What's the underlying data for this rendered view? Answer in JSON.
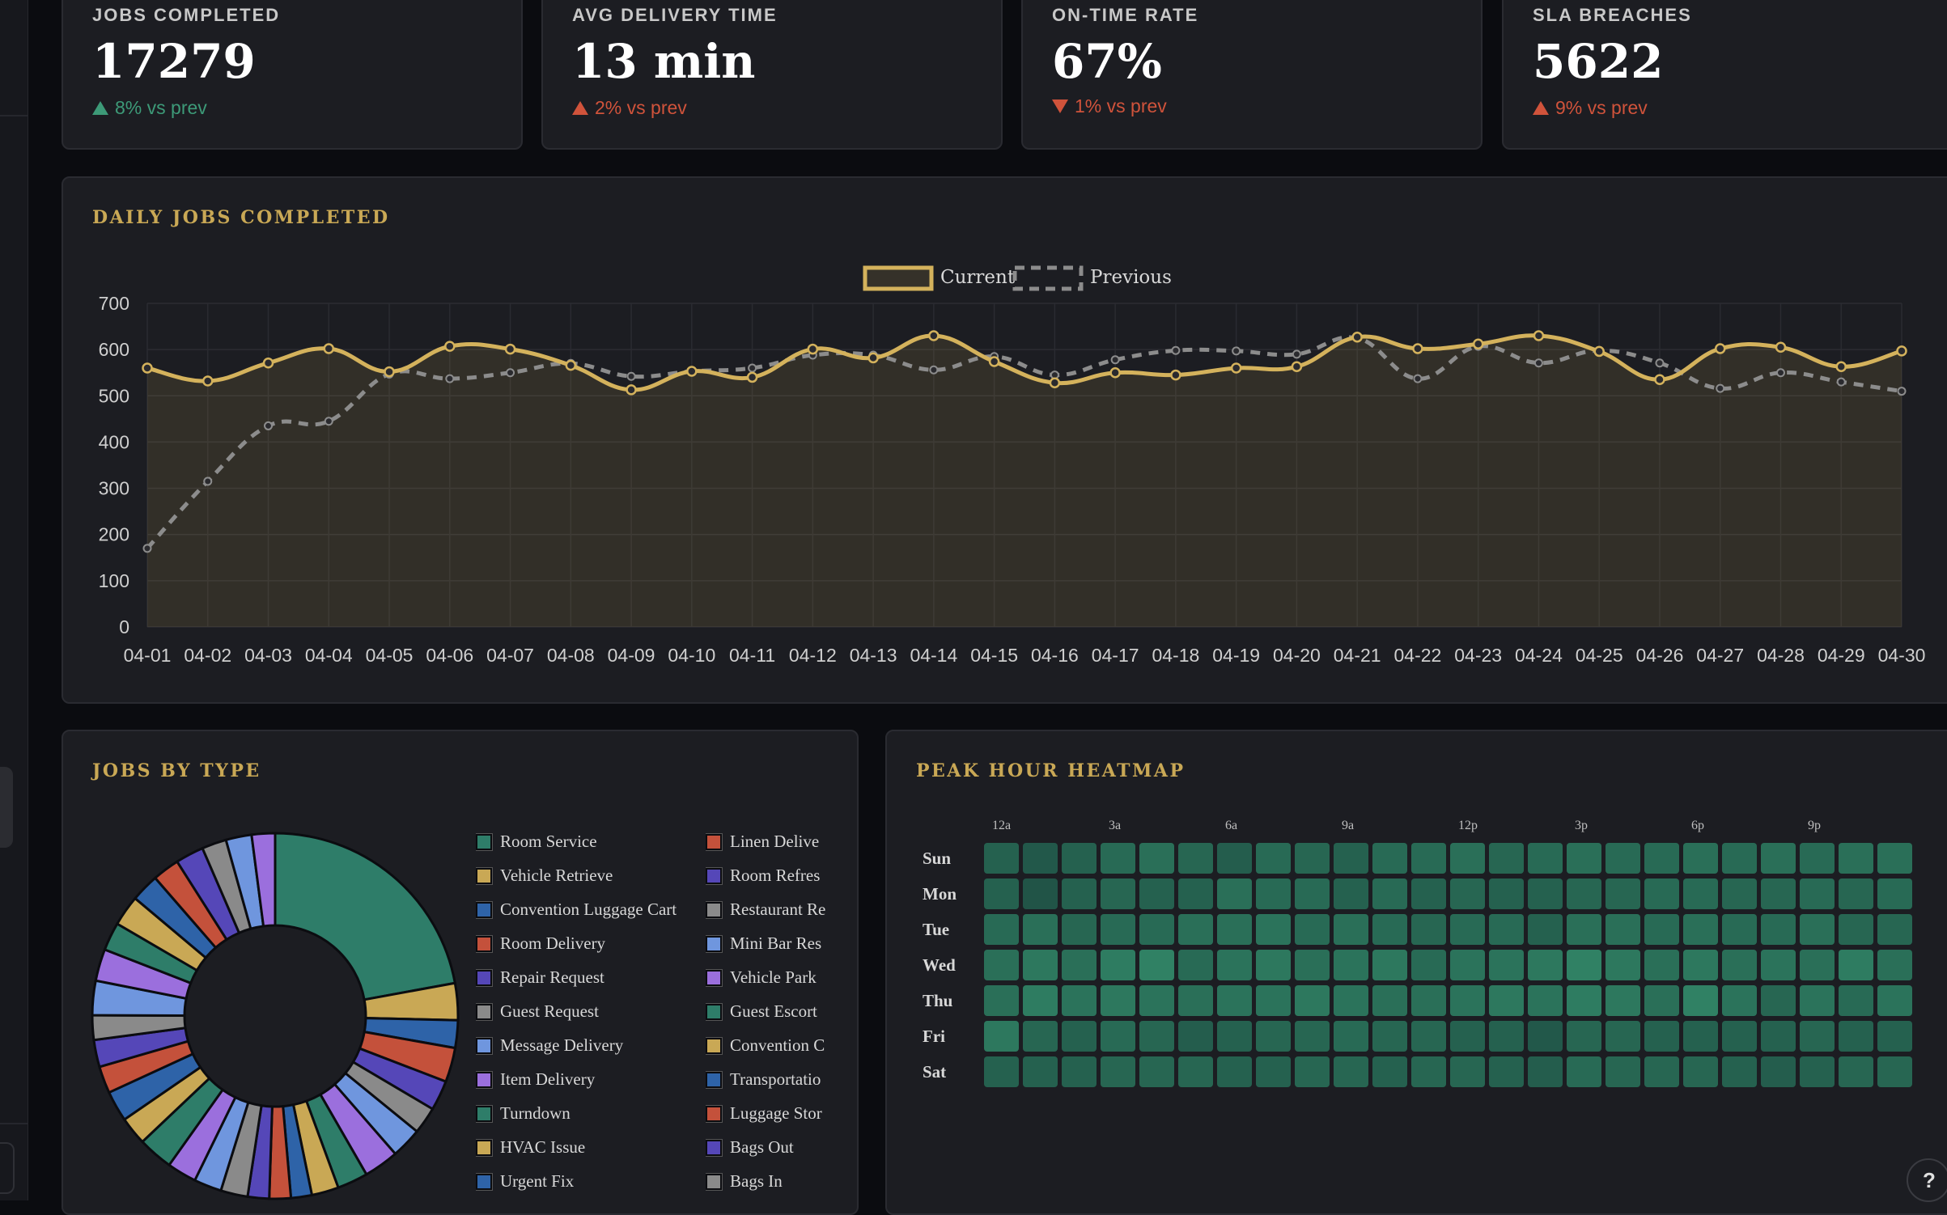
{
  "kpis": [
    {
      "label": "JOBS COMPLETED",
      "value": "17279",
      "delta": "8% vs prev",
      "direction": "up",
      "tone": "good"
    },
    {
      "label": "AVG DELIVERY TIME",
      "value": "13 min",
      "delta": "2% vs prev",
      "direction": "up",
      "tone": "bad"
    },
    {
      "label": "ON-TIME RATE",
      "value": "67%",
      "delta": "1% vs prev",
      "direction": "down",
      "tone": "bad"
    },
    {
      "label": "SLA BREACHES",
      "value": "5622",
      "delta": "9% vs prev",
      "direction": "up",
      "tone": "bad"
    }
  ],
  "colors": {
    "accent": "#c9a855",
    "good": "#3d9a78",
    "bad": "#d0533b",
    "current": "#d4b25c",
    "previous": "#8c8c8c",
    "panel": "#1c1d22"
  },
  "line_panel": {
    "title": "DAILY JOBS COMPLETED"
  },
  "donut_panel": {
    "title": "JOBS BY TYPE"
  },
  "heatmap_panel": {
    "title": "PEAK HOUR HEATMAP"
  },
  "help": {
    "label": "?"
  },
  "chart_data": [
    {
      "type": "line",
      "legend_position": "top-center",
      "grid": true,
      "x": [
        "04-01",
        "04-02",
        "04-03",
        "04-04",
        "04-05",
        "04-06",
        "04-07",
        "04-08",
        "04-09",
        "04-10",
        "04-11",
        "04-12",
        "04-13",
        "04-14",
        "04-15",
        "04-16",
        "04-17",
        "04-18",
        "04-19",
        "04-20",
        "04-21",
        "04-22",
        "04-23",
        "04-24",
        "04-25",
        "04-26",
        "04-27",
        "04-28",
        "04-29",
        "04-30"
      ],
      "ylim": [
        0,
        700
      ],
      "yticks": [
        0,
        100,
        200,
        300,
        400,
        500,
        600,
        700
      ],
      "series": [
        {
          "name": "Current",
          "values": [
            560,
            532,
            571,
            602,
            552,
            607,
            601,
            566,
            513,
            553,
            540,
            601,
            582,
            630,
            574,
            528,
            550,
            545,
            560,
            563,
            627,
            602,
            612,
            630,
            596,
            535,
            602,
            605,
            563,
            597
          ]
        },
        {
          "name": "Previous",
          "values": [
            170,
            315,
            435,
            445,
            547,
            537,
            550,
            570,
            542,
            553,
            560,
            588,
            588,
            556,
            585,
            545,
            578,
            598,
            597,
            590,
            625,
            537,
            607,
            571,
            598,
            571,
            516,
            550,
            530,
            510
          ]
        }
      ]
    },
    {
      "type": "pie",
      "categories": [
        "Room Service",
        "Vehicle Retrieve",
        "Convention Luggage Cart",
        "Room Delivery",
        "Repair Request",
        "Guest Request",
        "Message Delivery",
        "Item Delivery",
        "Turndown",
        "HVAC Issue",
        "Urgent Fix",
        "Linen Delive",
        "Room Refres",
        "Restaurant Re",
        "Mini Bar Res",
        "Vehicle Park",
        "Guest Escort",
        "Convention C",
        "Transportatio",
        "Luggage Stor",
        "Bags Out",
        "Bags In"
      ],
      "values": [
        {
          "label": "Room Service",
          "value": 2040
        },
        {
          "label": "Vehicle Retrieve",
          "value": 300
        },
        {
          "label": "Convention Luggage Cart",
          "value": 225
        },
        {
          "label": "Room Delivery",
          "value": 280
        },
        {
          "label": "Repair Request",
          "value": 245
        },
        {
          "label": "Guest Request",
          "value": 220
        },
        {
          "label": "Message Delivery",
          "value": 250
        },
        {
          "label": "Item Delivery",
          "value": 285
        },
        {
          "label": "Turndown",
          "value": 250
        },
        {
          "label": "HVAC Issue",
          "value": 220
        },
        {
          "label": "Urgent Fix",
          "value": 170
        },
        {
          "label": "Linen Delive",
          "value": 175
        },
        {
          "label": "Room Refres",
          "value": 175
        },
        {
          "label": "Restaurant Re",
          "value": 220
        },
        {
          "label": "Mini Bar Res",
          "value": 225
        },
        {
          "label": "Vehicle Park",
          "value": 240
        },
        {
          "label": "Guest Escort",
          "value": 285
        },
        {
          "label": "Convention C",
          "value": 230
        },
        {
          "label": "Transportatio",
          "value": 250
        },
        {
          "label": "Luggage Stor",
          "value": 220
        },
        {
          "label": "Bags Out",
          "value": 220
        },
        {
          "label": "Bags In",
          "value": 200
        }
      ],
      "more_slices_unlabeled": [
        280,
        260,
        230,
        250,
        230,
        220,
        230,
        200,
        210,
        190
      ],
      "legend_position": "right"
    },
    {
      "type": "heatmap",
      "rows": [
        "Sun",
        "Mon",
        "Tue",
        "Wed",
        "Thu",
        "Fri",
        "Sat"
      ],
      "hour_labels": [
        "12a",
        "3a",
        "6a",
        "9a",
        "12p",
        "3p",
        "6p",
        "9p"
      ],
      "hours_per_row": 24,
      "values": [
        [
          0.3,
          0.2,
          0.3,
          0.4,
          0.45,
          0.35,
          0.25,
          0.4,
          0.35,
          0.3,
          0.4,
          0.4,
          0.45,
          0.35,
          0.4,
          0.45,
          0.4,
          0.4,
          0.45,
          0.4,
          0.45,
          0.4,
          0.45,
          0.45
        ],
        [
          0.3,
          0.15,
          0.3,
          0.35,
          0.3,
          0.3,
          0.45,
          0.4,
          0.4,
          0.3,
          0.4,
          0.3,
          0.35,
          0.3,
          0.3,
          0.35,
          0.35,
          0.4,
          0.4,
          0.35,
          0.35,
          0.4,
          0.35,
          0.4
        ],
        [
          0.4,
          0.45,
          0.35,
          0.4,
          0.4,
          0.45,
          0.45,
          0.5,
          0.4,
          0.45,
          0.4,
          0.35,
          0.4,
          0.4,
          0.3,
          0.45,
          0.45,
          0.4,
          0.45,
          0.4,
          0.4,
          0.45,
          0.35,
          0.35
        ],
        [
          0.45,
          0.55,
          0.45,
          0.6,
          0.65,
          0.4,
          0.5,
          0.55,
          0.45,
          0.5,
          0.55,
          0.4,
          0.5,
          0.5,
          0.55,
          0.65,
          0.55,
          0.45,
          0.55,
          0.45,
          0.5,
          0.45,
          0.6,
          0.45
        ],
        [
          0.45,
          0.6,
          0.5,
          0.55,
          0.5,
          0.45,
          0.5,
          0.5,
          0.55,
          0.5,
          0.45,
          0.45,
          0.5,
          0.55,
          0.5,
          0.6,
          0.55,
          0.45,
          0.65,
          0.5,
          0.35,
          0.5,
          0.4,
          0.5
        ],
        [
          0.55,
          0.35,
          0.3,
          0.4,
          0.35,
          0.25,
          0.3,
          0.35,
          0.35,
          0.4,
          0.35,
          0.35,
          0.3,
          0.3,
          0.2,
          0.35,
          0.35,
          0.3,
          0.3,
          0.3,
          0.3,
          0.35,
          0.3,
          0.3
        ],
        [
          0.3,
          0.3,
          0.3,
          0.35,
          0.35,
          0.35,
          0.3,
          0.3,
          0.35,
          0.35,
          0.3,
          0.35,
          0.35,
          0.3,
          0.25,
          0.4,
          0.35,
          0.35,
          0.35,
          0.3,
          0.25,
          0.3,
          0.35,
          0.35
        ]
      ]
    }
  ]
}
